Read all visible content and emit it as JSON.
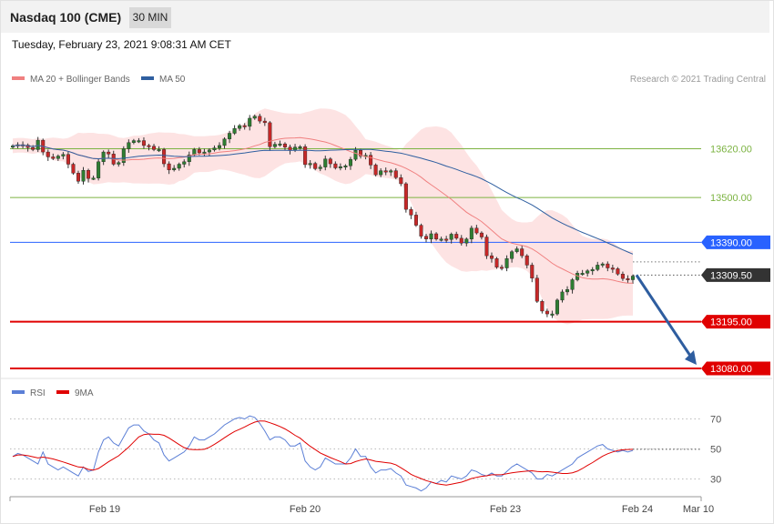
{
  "header": {
    "title": "Nasdaq 100 (CME)",
    "interval": "30 MIN",
    "timestamp": "Tuesday, February 23, 2021 9:08:31 AM CET"
  },
  "legend": {
    "ma20": "MA 20 + Bollinger Bands",
    "ma50": "MA 50",
    "ma20_color": "#f08080",
    "ma50_color": "#2f5fa0",
    "credit": "Research © 2021 Trading Central"
  },
  "rsi_legend": {
    "rsi": "RSI",
    "ma9": "9MA",
    "rsi_color": "#5b7fd6",
    "ma9_color": "#e00000"
  },
  "chart_data": {
    "type": "candlestick",
    "ylim": [
      13060,
      13740
    ],
    "x_ticks": [
      "Feb 19",
      "Feb 20",
      "Feb 23",
      "Feb 24",
      "Mar 10"
    ],
    "levels": [
      {
        "value": 13620.0,
        "label": "13620.00",
        "kind": "resistance",
        "color": "#7cb342"
      },
      {
        "value": 13500.0,
        "label": "13500.00",
        "kind": "resistance",
        "color": "#7cb342"
      },
      {
        "value": 13390.0,
        "label": "13390.00",
        "kind": "pivot",
        "color": "#2962ff"
      },
      {
        "value": 13309.5,
        "label": "13309.50",
        "kind": "last",
        "color": "#333333"
      },
      {
        "value": 13195.0,
        "label": "13195.00",
        "kind": "support",
        "color": "#e00000"
      },
      {
        "value": 13080.0,
        "label": "13080.00",
        "kind": "support",
        "color": "#e00000"
      }
    ],
    "projection": {
      "from": 13309.5,
      "to": 13080.0,
      "color": "#2e5d9f"
    },
    "close": [
      13627,
      13630,
      13629,
      13623,
      13618,
      13641,
      13612,
      13600,
      13596,
      13602,
      13606,
      13582,
      13560,
      13540,
      13567,
      13547,
      13548,
      13588,
      13612,
      13607,
      13582,
      13586,
      13620,
      13635,
      13640,
      13640,
      13628,
      13626,
      13618,
      13618,
      13583,
      13568,
      13572,
      13582,
      13588,
      13605,
      13618,
      13610,
      13612,
      13617,
      13622,
      13628,
      13644,
      13658,
      13670,
      13677,
      13675,
      13695,
      13700,
      13688,
      13684,
      13625,
      13631,
      13632,
      13624,
      13616,
      13624,
      13625,
      13581,
      13584,
      13571,
      13575,
      13595,
      13583,
      13573,
      13576,
      13578,
      13594,
      13616,
      13602,
      13604,
      13580,
      13556,
      13566,
      13563,
      13566,
      13549,
      13534,
      13471,
      13457,
      13432,
      13405,
      13398,
      13411,
      13398,
      13398,
      13397,
      13410,
      13400,
      13388,
      13398,
      13425,
      13413,
      13403,
      13357,
      13350,
      13329,
      13327,
      13350,
      13367,
      13374,
      13357,
      13334,
      13302,
      13245,
      13221,
      13214,
      13214,
      13248,
      13268,
      13274,
      13298,
      13314,
      13314,
      13320,
      13323,
      13334,
      13337,
      13327,
      13325,
      13312,
      13301,
      13298,
      13307
    ],
    "rsi": {
      "levels": [
        70,
        50,
        30
      ],
      "ylim": [
        10,
        90
      ],
      "rsi": [
        45,
        47,
        46,
        44,
        42,
        40,
        48,
        40,
        38,
        36,
        38,
        36,
        34,
        32,
        38,
        35,
        36,
        48,
        56,
        58,
        54,
        52,
        58,
        64,
        66,
        66,
        62,
        60,
        56,
        54,
        46,
        42,
        44,
        46,
        48,
        52,
        58,
        56,
        56,
        58,
        60,
        63,
        66,
        68,
        70,
        71,
        70,
        72,
        71,
        67,
        62,
        56,
        58,
        58,
        56,
        52,
        52,
        54,
        42,
        38,
        36,
        38,
        44,
        42,
        40,
        40,
        40,
        44,
        50,
        45,
        45,
        38,
        34,
        36,
        36,
        37,
        34,
        32,
        26,
        25,
        24,
        22,
        24,
        28,
        27,
        29,
        28,
        32,
        31,
        30,
        32,
        36,
        35,
        33,
        32,
        34,
        32,
        32,
        35,
        38,
        40,
        38,
        36,
        34,
        30,
        30,
        33,
        32,
        34,
        36,
        38,
        40,
        44,
        46,
        48,
        50,
        52,
        53,
        50,
        49,
        48,
        49,
        48,
        49
      ]
    }
  }
}
